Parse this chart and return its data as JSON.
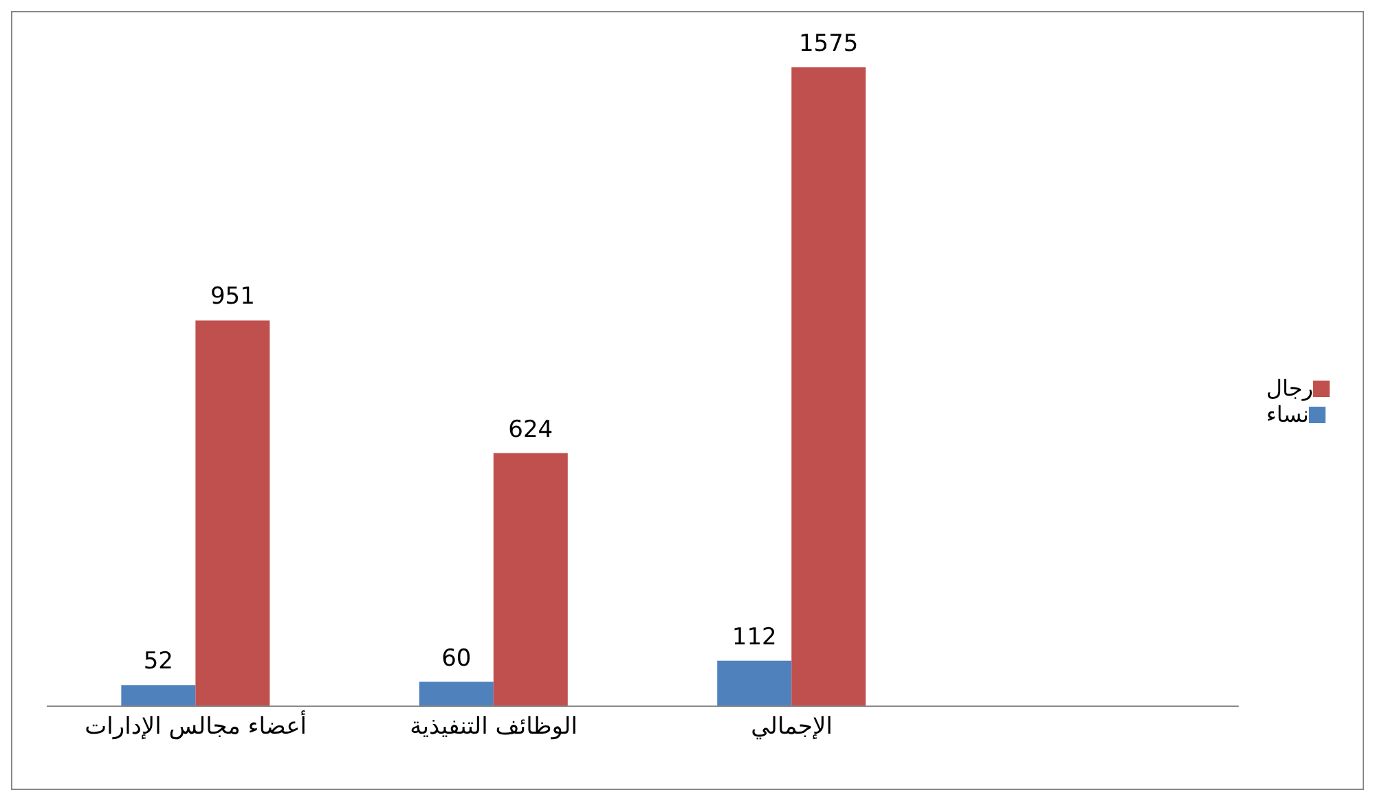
{
  "chart_data": {
    "type": "bar",
    "categories": [
      "أعضاء مجالس الإدارات",
      "الوظائف التنفيذية",
      "الإجمالي",
      null
    ],
    "series": [
      {
        "name": "نساء",
        "color": "#4f81bd",
        "values": [
          52,
          60,
          112,
          null
        ]
      },
      {
        "name": "رجال",
        "color": "#c0504d",
        "values": [
          951,
          624,
          1575,
          null
        ]
      }
    ],
    "data_labels": true,
    "legend": "right",
    "grid": false
  }
}
